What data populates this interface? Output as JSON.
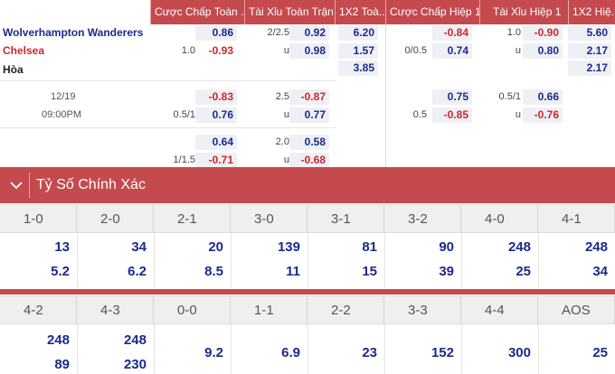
{
  "header": {
    "col1": "Cược Chấp Toàn ...",
    "col2": "Tài Xỉu Toàn Trận",
    "col3": "1X2 Toà...",
    "col4": "Cược Chấp Hiệp 1",
    "col5": "Tài Xỉu Hiệp 1",
    "col6": "1X2 Hiệ..."
  },
  "match": {
    "home": "Wolverhampton Wanderers",
    "away": "Chelsea",
    "draw": "Hòa",
    "date": "12/19",
    "time": "09:00PM"
  },
  "odds": {
    "r1": {
      "ft_hcap_home": "0.86",
      "ft_ou_line": "2/2.5",
      "ft_ou_over": "0.92",
      "ft_1x2_home": "6.20",
      "h1_hcap_home": "-0.84",
      "h1_ou_line": "1.0",
      "h1_ou_over": "-0.90",
      "h1_1x2_home": "5.60"
    },
    "r2": {
      "ft_hcap_line": "1.0",
      "ft_hcap_away": "-0.93",
      "ft_ou_u": "u",
      "ft_ou_under": "0.98",
      "ft_1x2_away": "1.57",
      "h1_hcap_line": "0/0.5",
      "h1_hcap_away": "0.74",
      "h1_ou_u": "u",
      "h1_ou_under": "0.80",
      "h1_1x2_away": "2.17"
    },
    "r3": {
      "ft_1x2_draw": "3.85",
      "h1_1x2_draw": "2.17"
    },
    "r4": {
      "ft_hcap_home": "-0.83",
      "ft_ou_line": "2.5",
      "ft_ou_over": "-0.87",
      "h1_hcap_home": "0.75",
      "h1_ou_line": "0.5/1",
      "h1_ou_over": "0.66"
    },
    "r5": {
      "ft_hcap_line": "0.5/1",
      "ft_hcap_away": "0.76",
      "ft_ou_u": "u",
      "ft_ou_under": "0.77",
      "h1_hcap_line": "0.5",
      "h1_hcap_away": "-0.85",
      "h1_ou_u": "u",
      "h1_ou_under": "-0.76"
    },
    "r6": {
      "ft_hcap_home": "0.64",
      "ft_ou_line": "2.0",
      "ft_ou_over": "0.58"
    },
    "r7": {
      "ft_hcap_line": "1/1.5",
      "ft_hcap_away": "-0.71",
      "ft_ou_u": "u",
      "ft_ou_under": "-0.68"
    }
  },
  "correct_score": {
    "title": "Tỷ Số Chính Xác",
    "row1": {
      "labels": [
        "1-0",
        "2-0",
        "2-1",
        "3-0",
        "3-1",
        "3-2",
        "4-0",
        "4-1"
      ],
      "top": [
        "13",
        "34",
        "20",
        "139",
        "81",
        "90",
        "248",
        "248"
      ],
      "bottom": [
        "5.2",
        "6.2",
        "8.5",
        "11",
        "15",
        "39",
        "25",
        "34"
      ]
    },
    "row2": {
      "labels": [
        "4-2",
        "4-3",
        "0-0",
        "1-1",
        "2-2",
        "3-3",
        "4-4",
        "AOS"
      ],
      "top": [
        "248",
        "248",
        "",
        "",
        "",
        "",
        "",
        ""
      ],
      "mid": [
        "",
        "",
        "9.2",
        "6.9",
        "23",
        "152",
        "300",
        "25"
      ],
      "bottom": [
        "89",
        "230",
        "",
        "",
        "",
        "",
        "",
        ""
      ]
    }
  },
  "colors": {
    "accent": "#c44a4e",
    "home": "#1a2a8c",
    "away": "#d0262c"
  }
}
